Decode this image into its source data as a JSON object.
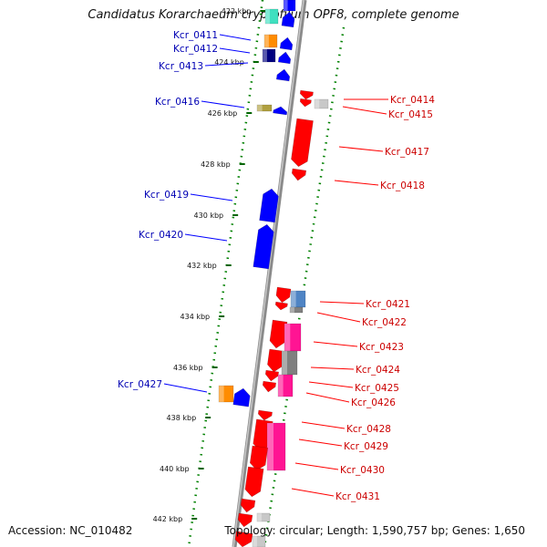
{
  "title": "Candidatus Korarchaeum cryptofilum OPF8, complete genome",
  "accession": "Accession: NC_010482",
  "topology": "Topology: circular; Length: 1,590,757 bp; Genes: 1,650",
  "colors": {
    "blue": "#0000ff",
    "red": "#ff0000",
    "orange": "#ff8c00",
    "teal": "#40e0c0",
    "khaki": "#b0a040",
    "steelblue": "#4f84c4",
    "magenta": "#ff1493",
    "gray": "#808080",
    "lightgray": "#c8c8c8",
    "navy": "#000080",
    "dotted_line": "#008000",
    "backbone": "#808080"
  },
  "tick_labels": [
    "422 kbp",
    "424 kbp",
    "426 kbp",
    "428 kbp",
    "430 kbp",
    "432 kbp",
    "434 kbp",
    "436 kbp",
    "438 kbp",
    "440 kbp",
    "442 kbp"
  ],
  "left_genes": [
    "Kcr_0411",
    "Kcr_0412",
    "Kcr_0413",
    "Kcr_0416",
    "Kcr_0419",
    "Kcr_0420",
    "Kcr_0427"
  ],
  "right_genes": [
    "Kcr_0414",
    "Kcr_0415",
    "Kcr_0417",
    "Kcr_0418",
    "Kcr_0421",
    "Kcr_0422",
    "Kcr_0423",
    "Kcr_0424",
    "Kcr_0425",
    "Kcr_0426",
    "Kcr_0428",
    "Kcr_0429",
    "Kcr_0430",
    "Kcr_0431"
  ]
}
